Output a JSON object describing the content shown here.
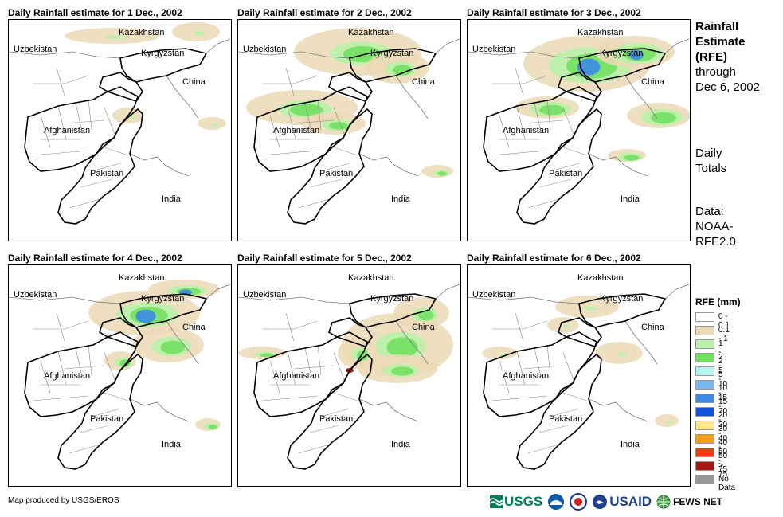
{
  "panels": [
    {
      "title": "Daily Rainfall estimate for 1 Dec., 2002",
      "intensity": 0.35
    },
    {
      "title": "Daily Rainfall estimate for 2 Dec., 2002",
      "intensity": 0.75
    },
    {
      "title": "Daily Rainfall estimate for 3 Dec., 2002",
      "intensity": 1.0
    },
    {
      "title": "Daily Rainfall estimate for 4 Dec., 2002",
      "intensity": 0.85
    },
    {
      "title": "Daily Rainfall estimate for 5 Dec., 2002",
      "intensity": 0.7
    },
    {
      "title": "Daily Rainfall estimate for 6 Dec., 2002",
      "intensity": 0.3
    }
  ],
  "map_labels": {
    "kazakhstan": "Kazakhstan",
    "uzbekistan": "Uzbekistan",
    "kyrgyzstan": "Kyrgyzstan",
    "china": "China",
    "afghanistan": "Afghanistan",
    "pakistan": "Pakistan",
    "india": "India"
  },
  "sidebar": {
    "title_lines": [
      "Rainfall",
      "Estimate",
      "(RFE)"
    ],
    "through_lines": [
      "through",
      "Dec 6, 2002"
    ],
    "totals_lines": [
      "Daily",
      "Totals"
    ],
    "data_lines": [
      "Data:",
      "NOAA-",
      "RFE2.0"
    ]
  },
  "legend": {
    "title": "RFE (mm)",
    "items": [
      {
        "label": "0 - 0.1",
        "color": "#ffffff"
      },
      {
        "label": "0.1 - 1",
        "color": "#ecd9b6"
      },
      {
        "label": "1 - 2",
        "color": "#b9f2a8"
      },
      {
        "label": "2 - 5",
        "color": "#72e060"
      },
      {
        "label": "5 - 10",
        "color": "#b8f4f4"
      },
      {
        "label": "10 - 15",
        "color": "#79b7f2"
      },
      {
        "label": "15 - 20",
        "color": "#3a8ae6"
      },
      {
        "label": "20 - 30",
        "color": "#1450d8"
      },
      {
        "label": "30 - 40",
        "color": "#fde68a"
      },
      {
        "label": "40 - 50",
        "color": "#f59e0b"
      },
      {
        "label": "50 - 75",
        "color": "#ee3b12"
      },
      {
        "label": "> 75",
        "color": "#a51616"
      },
      {
        "label": "No Data",
        "color": "#999999"
      }
    ]
  },
  "credit": "Map produced by USGS/EROS",
  "logos": {
    "usgs": "USGS",
    "usaid": "USAID",
    "fewsnet": "FEWS NET"
  }
}
